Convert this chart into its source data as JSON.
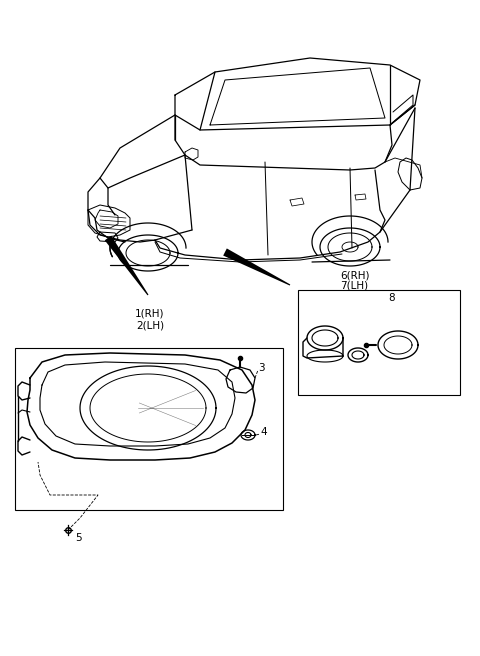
{
  "bg_color": "#ffffff",
  "line_color": "#000000",
  "label_1": "1(RH)",
  "label_2": "2(LH)",
  "label_3": "3",
  "label_4": "4",
  "label_5": "5",
  "label_6": "6(RH)",
  "label_7": "7(LH)",
  "label_8": "8",
  "figsize": [
    4.8,
    6.56
  ],
  "dpi": 100,
  "font_size": 7.5
}
